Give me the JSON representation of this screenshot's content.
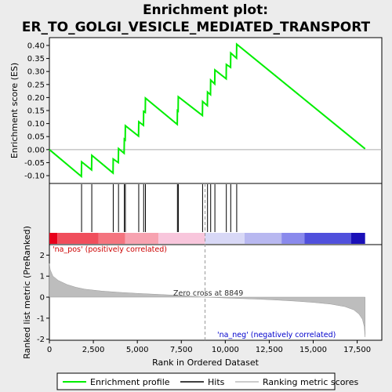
{
  "title_line1": "Enrichment plot:",
  "title_line2": "ER_TO_GOLGI_VESICLE_MEDIATED_TRANSPORT",
  "chart_data": {
    "type": "line",
    "es_axis": {
      "ylabel": "Enrichment score (ES)",
      "ylim": [
        -0.13,
        0.43
      ],
      "yticks": [
        -0.1,
        -0.05,
        0.0,
        0.05,
        0.1,
        0.15,
        0.2,
        0.25,
        0.3,
        0.35,
        0.4
      ],
      "ytick_labels": [
        "-0.10",
        "-0.05",
        "0.00",
        "0.05",
        "0.10",
        "0.15",
        "0.20",
        "0.25",
        "0.30",
        "0.35",
        "0.40"
      ]
    },
    "x_axis": {
      "xlabel": "Rank in Ordered Dataset",
      "xlim": [
        0,
        18900
      ],
      "xticks": [
        0,
        2500,
        5000,
        7500,
        10000,
        12500,
        15000,
        17500
      ],
      "xtick_labels": [
        "0",
        "2,500",
        "5,000",
        "7,500",
        "10,000",
        "12,500",
        "15,000",
        "17,500"
      ]
    },
    "enrichment_profile": {
      "name": "Enrichment profile",
      "color": "#00ee00",
      "x": [
        0,
        1820,
        1830,
        2400,
        2410,
        3620,
        3630,
        3920,
        3930,
        4250,
        4260,
        4310,
        4320,
        5070,
        5080,
        5350,
        5360,
        5450,
        5460,
        7270,
        7280,
        7320,
        7330,
        8700,
        8710,
        8980,
        8990,
        9160,
        9170,
        9400,
        9410,
        10050,
        10060,
        10300,
        10310,
        10640,
        10650,
        17950
      ],
      "y": [
        0.0,
        -0.103,
        -0.047,
        -0.078,
        -0.022,
        -0.09,
        -0.036,
        -0.05,
        0.004,
        -0.014,
        0.04,
        0.037,
        0.092,
        0.052,
        0.107,
        0.093,
        0.147,
        0.143,
        0.198,
        0.097,
        0.15,
        0.148,
        0.203,
        0.131,
        0.185,
        0.169,
        0.221,
        0.211,
        0.267,
        0.252,
        0.306,
        0.272,
        0.327,
        0.316,
        0.371,
        0.351,
        0.405,
        0.003
      ]
    },
    "hits": {
      "name": "Hits",
      "positions": [
        1830,
        2410,
        3630,
        3930,
        4260,
        4320,
        5080,
        5360,
        5460,
        7280,
        7330,
        8710,
        8990,
        9170,
        9410,
        10060,
        10310,
        10650
      ]
    },
    "rank_metric": {
      "name": "Ranking metric scores",
      "ylabel": "Ranked list metric (PreRanked)",
      "ylim": [
        -2.05,
        2.5
      ],
      "yticks": [
        -2,
        -1,
        0,
        1,
        2
      ],
      "ytick_labels": [
        "-2",
        "-1",
        "0",
        "1",
        "2"
      ],
      "x": [
        0,
        50,
        200,
        500,
        1000,
        1500,
        2000,
        3000,
        4000,
        5000,
        6000,
        7000,
        8000,
        8849,
        10000,
        11000,
        12000,
        13000,
        14000,
        15000,
        16000,
        16800,
        17300,
        17600,
        17800,
        17900,
        17950
      ],
      "y": [
        1.6,
        1.3,
        1.0,
        0.8,
        0.6,
        0.47,
        0.38,
        0.29,
        0.23,
        0.18,
        0.14,
        0.1,
        0.05,
        0.0,
        -0.04,
        -0.07,
        -0.1,
        -0.14,
        -0.19,
        -0.25,
        -0.33,
        -0.45,
        -0.6,
        -0.8,
        -1.05,
        -1.4,
        -1.9
      ]
    },
    "zero_cross": {
      "rank": 8849,
      "label": "Zero cross at 8849"
    },
    "annotations": {
      "pos_label": "'na_pos' (positively correlated)",
      "neg_label": "'na_neg' (negatively correlated)",
      "pos_color": "#cc0000",
      "neg_color": "#0000cc"
    },
    "heatmap_strip": {
      "segments": [
        {
          "x0": 0,
          "x1": 450,
          "color": "#e8001c"
        },
        {
          "x0": 450,
          "x1": 2800,
          "color": "#f04e5c"
        },
        {
          "x0": 2800,
          "x1": 4300,
          "color": "#f4747f"
        },
        {
          "x0": 4300,
          "x1": 6200,
          "color": "#f7a2b0"
        },
        {
          "x0": 6200,
          "x1": 8849,
          "color": "#f8c6dc"
        },
        {
          "x0": 8849,
          "x1": 11100,
          "color": "#d8d8f6"
        },
        {
          "x0": 11100,
          "x1": 13200,
          "color": "#b8b8f0"
        },
        {
          "x0": 13200,
          "x1": 14500,
          "color": "#8a8aec"
        },
        {
          "x0": 14500,
          "x1": 17150,
          "color": "#5050dc"
        },
        {
          "x0": 17150,
          "x1": 17950,
          "color": "#1a10b8"
        }
      ]
    },
    "legend": {
      "placement": "bottom",
      "entries": [
        {
          "label": "Enrichment profile",
          "color": "#00ee00"
        },
        {
          "label": "Hits",
          "color": "#000000"
        },
        {
          "label": "Ranking metric scores",
          "color": "#bbbbbb"
        }
      ]
    }
  }
}
